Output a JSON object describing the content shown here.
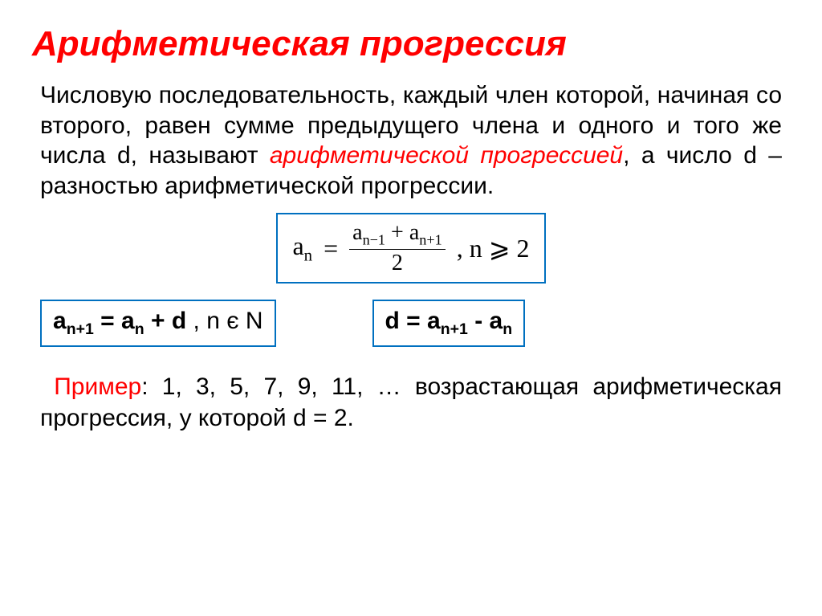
{
  "colors": {
    "title": "#ff0000",
    "term": "#ff0000",
    "box_border": "#0070c0",
    "example_label": "#ff0000",
    "text": "#000000"
  },
  "title": "Арифметическая прогрессия",
  "definition": {
    "part1": "Числовую последовательность, каждый член которой, начиная со второго, равен сумме предыдущего члена и одного и того же числа d, называют ",
    "term": "арифметической прогрессией",
    "part2": ", а число d – разностью арифметической прогрессии."
  },
  "formula_mean": {
    "lhs": "a",
    "lhs_sub": "n",
    "eq": " = ",
    "num_a1": "a",
    "num_a1_sub": "n−1",
    "num_plus": " + ",
    "num_a2": "a",
    "num_a2_sub": "n+1",
    "den": "2",
    "cond": ", n ⩾ 2"
  },
  "formula_recur": {
    "a1": "a",
    "a1_sub": "n+1",
    "eq": " = ",
    "a2": "a",
    "a2_sub": "n",
    "plus_d": " + d ",
    "comma": ",  ",
    "n_in_N": "n є N"
  },
  "formula_diff": {
    "d_eq": "d =  ",
    "a1": "a",
    "a1_sub": "n+1",
    "minus": " - ",
    "a2": "a",
    "a2_sub": "n"
  },
  "example": {
    "label": "Пример",
    "text": ": 1, 3, 5, 7, 9, 11, … возрастающая арифметическая прогрессия, у которой d = 2."
  }
}
